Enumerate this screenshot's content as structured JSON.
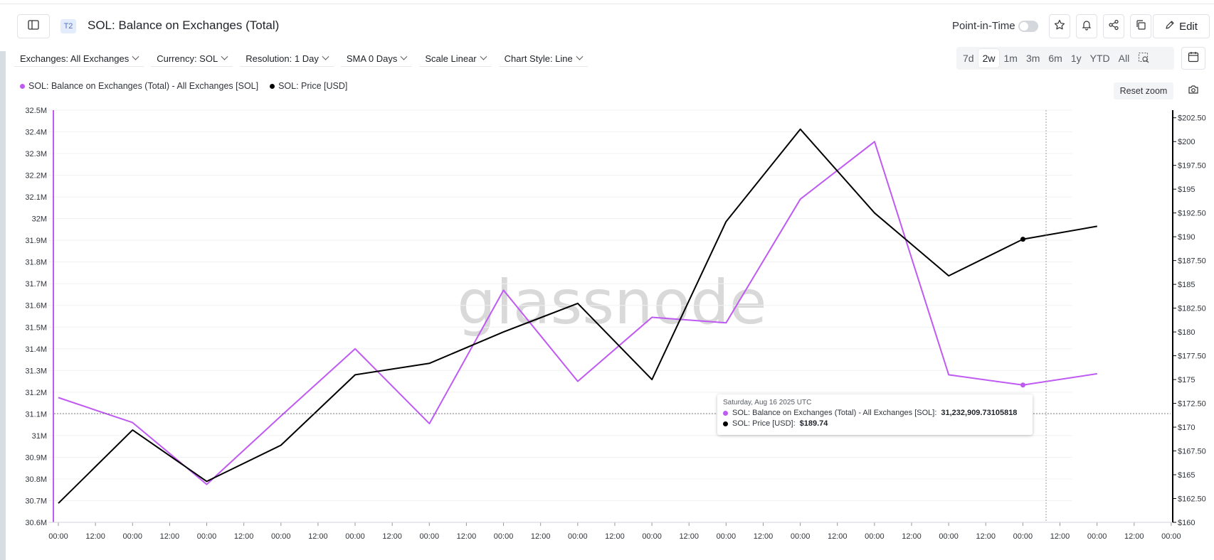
{
  "header": {
    "tier": "T2",
    "title": "SOL: Balance on Exchanges (Total)",
    "point_in_time_label": "Point-in-Time",
    "edit_label": "Edit"
  },
  "toolbar": {
    "exchanges": "Exchanges: All Exchanges",
    "currency": "Currency: SOL",
    "resolution": "Resolution: 1 Day",
    "sma": "SMA 0 Days",
    "scale": "Scale Linear",
    "chart_style": "Chart Style: Line"
  },
  "ranges": [
    "7d",
    "2w",
    "1m",
    "3m",
    "6m",
    "1y",
    "YTD",
    "All"
  ],
  "active_range": "2w",
  "reset_zoom_label": "Reset zoom",
  "watermark": "glassnode",
  "colors": {
    "balance": "#bf5af2",
    "price": "#000000",
    "badge_bg": "#e3ecfb"
  },
  "tooltip": {
    "date": "Saturday, Aug 16 2025 UTC",
    "balance_label": "SOL: Balance on Exchanges (Total) - All Exchanges [SOL]:",
    "balance_value": "31,232,909.73105818",
    "price_label": "SOL: Price [USD]:",
    "price_value": "$189.74"
  },
  "chart_data": {
    "type": "line",
    "title": "SOL: Balance on Exchanges (Total)",
    "x_ticks": [
      "00:00",
      "12:00",
      "00:00",
      "12:00",
      "00:00",
      "12:00",
      "00:00",
      "12:00",
      "00:00",
      "12:00",
      "00:00",
      "12:00",
      "00:00",
      "12:00",
      "00:00",
      "12:00",
      "00:00",
      "12:00",
      "00:00",
      "12:00",
      "00:00",
      "12:00",
      "00:00",
      "12:00",
      "00:00",
      "12:00",
      "00:00",
      "12:00",
      "00:00",
      "12:00",
      "00:00"
    ],
    "y_left": {
      "ticks": [
        "30.6M",
        "30.7M",
        "30.8M",
        "30.9M",
        "31M",
        "31.1M",
        "31.2M",
        "31.3M",
        "31.4M",
        "31.5M",
        "31.6M",
        "31.7M",
        "31.8M",
        "31.9M",
        "32M",
        "32.1M",
        "32.2M",
        "32.3M",
        "32.4M",
        "32.5M"
      ],
      "range": [
        30.6,
        32.5
      ],
      "unit": "M SOL"
    },
    "y_right": {
      "ticks": [
        "$160",
        "$162.50",
        "$165",
        "$167.50",
        "$170",
        "$172.50",
        "$175",
        "$177.50",
        "$180",
        "$182.50",
        "$185",
        "$187.50",
        "$190",
        "$192.50",
        "$195",
        "$197.50",
        "$200",
        "$202.50"
      ],
      "range": [
        160,
        203.3
      ],
      "unit": "USD"
    },
    "series": [
      {
        "name": "SOL: Balance on Exchanges (Total) - All Exchanges [SOL]",
        "axis": "left",
        "color": "#bf5af2",
        "values": [
          31.175,
          31.06,
          30.775,
          31.09,
          31.4,
          31.055,
          31.67,
          31.25,
          31.545,
          31.52,
          32.09,
          32.355,
          31.28,
          31.233,
          31.285
        ]
      },
      {
        "name": "SOL: Price [USD]",
        "axis": "right",
        "color": "#000000",
        "values": [
          162.0,
          169.7,
          164.3,
          168.1,
          175.5,
          176.7,
          180.0,
          183.0,
          175.0,
          191.6,
          201.3,
          192.5,
          185.9,
          189.74,
          191.1
        ]
      }
    ],
    "highlight_index": 13,
    "legend_position": "top-left",
    "grid": true
  }
}
